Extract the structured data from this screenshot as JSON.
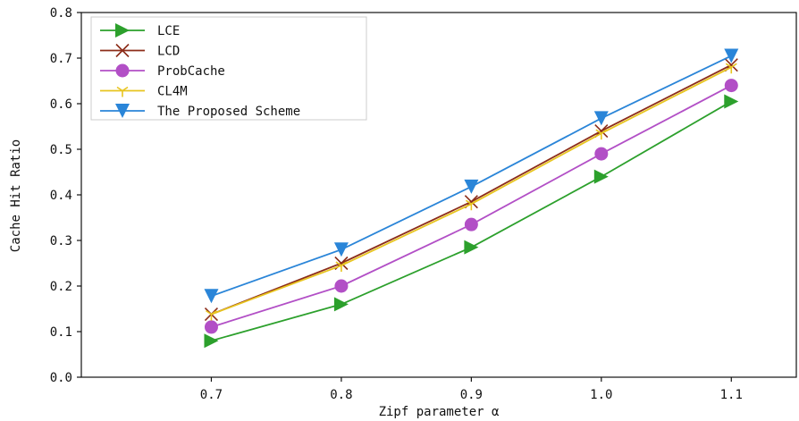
{
  "chart_data": {
    "type": "line",
    "title": "",
    "xlabel": "Zipf parameter α",
    "ylabel": "Cache Hit Ratio",
    "x": [
      0.7,
      0.8,
      0.9,
      1.0,
      1.1
    ],
    "x_tick_labels": [
      "0.7",
      "0.8",
      "0.9",
      "1.0",
      "1.1"
    ],
    "xlim": [
      0.6,
      1.15
    ],
    "ylim": [
      0,
      0.8
    ],
    "y_ticks": [
      0,
      0.1,
      0.2,
      0.3,
      0.4,
      0.5,
      0.6,
      0.7,
      0.8
    ],
    "y_tick_labels": [
      "0.0",
      "0.1",
      "0.2",
      "0.3",
      "0.4",
      "0.5",
      "0.6",
      "0.7",
      "0.8"
    ],
    "grid": false,
    "legend_position": "top-left",
    "series": [
      {
        "name": "LCE",
        "values": [
          0.08,
          0.16,
          0.285,
          0.44,
          0.605
        ],
        "color": "#2ca02c",
        "marker": "triangle-right"
      },
      {
        "name": "LCD",
        "values": [
          0.138,
          0.25,
          0.385,
          0.54,
          0.685
        ],
        "color": "#8c2d19",
        "marker": "x"
      },
      {
        "name": "ProbCache",
        "values": [
          0.11,
          0.2,
          0.335,
          0.49,
          0.64
        ],
        "color": "#b24fc6",
        "marker": "circle"
      },
      {
        "name": "CL4M",
        "values": [
          0.138,
          0.245,
          0.38,
          0.535,
          0.68
        ],
        "color": "#e8c51f",
        "marker": "tri-down"
      },
      {
        "name": "The Proposed Scheme",
        "values": [
          0.178,
          0.28,
          0.418,
          0.568,
          0.705
        ],
        "color": "#2a85d8",
        "marker": "triangle-down"
      }
    ]
  }
}
